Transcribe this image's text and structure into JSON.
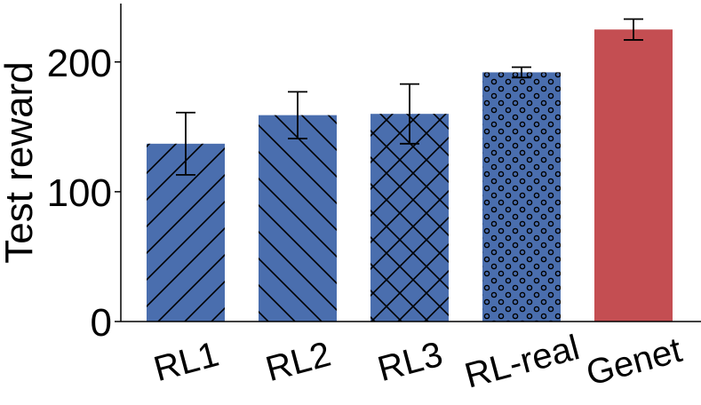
{
  "chart_data": {
    "type": "bar",
    "categories": [
      "RL1",
      "RL2",
      "RL3",
      "RL-real",
      "Genet"
    ],
    "values": [
      137,
      159,
      160,
      192,
      225
    ],
    "errors": [
      24,
      18,
      23,
      4,
      8
    ],
    "patterns": [
      "diag-forward",
      "diag-back",
      "crosshatch",
      "dots",
      "none"
    ],
    "colors": [
      "#4a6eae",
      "#4a6eae",
      "#4a6eae",
      "#4a6eae",
      "#c44e52"
    ],
    "ylabel": "Test reward",
    "xlabel": "",
    "ylim": [
      0,
      245
    ],
    "yticks": [
      0,
      100,
      200
    ],
    "grid": false
  }
}
